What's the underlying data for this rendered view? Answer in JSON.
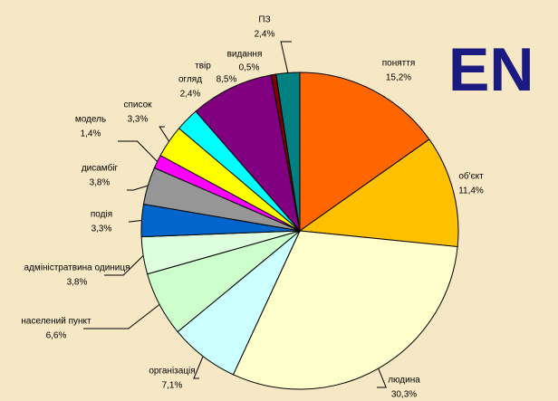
{
  "chart_data": {
    "type": "pie",
    "categories": [
      "поняття",
      "об'єкт",
      "людина",
      "організація",
      "населений пункт",
      "адміністратвина одиниця",
      "подія",
      "дисамбіг",
      "модель",
      "список",
      "огляд",
      "твір",
      "видання",
      "ПЗ"
    ],
    "values": [
      15.2,
      11.4,
      30.3,
      7.1,
      6.6,
      3.8,
      3.3,
      3.8,
      1.4,
      3.3,
      2.4,
      8.5,
      0.5,
      2.4
    ],
    "value_labels": [
      "15,2%",
      "11,4%",
      "30,3%",
      "7,1%",
      "6,6%",
      "3,8%",
      "3,3%",
      "3,8%",
      "1,4%",
      "3,3%",
      "2,4%",
      "8,5%",
      "0,5%",
      "2,4%"
    ],
    "colors": [
      "#ff6600",
      "#ffc000",
      "#ffffcc",
      "#ccffff",
      "#ccffcc",
      "#ddffdd",
      "#0066cc",
      "#969696",
      "#ff00ff",
      "#ffff00",
      "#00ffff",
      "#800080",
      "#800000",
      "#008080"
    ],
    "annotation": "EN"
  }
}
